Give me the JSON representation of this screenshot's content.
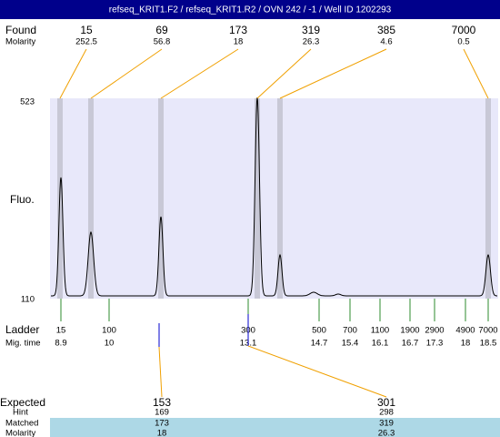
{
  "title": "refseq_KRIT1.F2 / refseq_KRIT1.R2 / OVN 242 / -1 / Well ID 1202293",
  "found": {
    "label": "Found",
    "molarity_label": "Molarity",
    "sizes": [
      15,
      69,
      173,
      319,
      385,
      7000
    ],
    "molarity": [
      252.5,
      56.8,
      18,
      26.3,
      4.6,
      0.5
    ]
  },
  "plot": {
    "y_label": "Fluo.",
    "y_top": 523,
    "y_bottom": 110
  },
  "ladder": {
    "label": "Ladder",
    "mig_label": "Mig. time",
    "sizes": [
      15,
      100,
      300,
      500,
      700,
      1100,
      1900,
      2900,
      4900,
      7000
    ],
    "mig_times": [
      8.9,
      10,
      13.1,
      14.7,
      15.4,
      16.1,
      16.7,
      17.3,
      18,
      18.5
    ]
  },
  "expected": {
    "label": "Expected",
    "hint_label": "Hint",
    "matched_label": "Matched",
    "molarity_label": "Molarity",
    "expected": [
      153,
      301
    ],
    "hint": [
      169,
      298
    ],
    "matched": [
      173,
      319
    ],
    "molarity": [
      18,
      26.3
    ]
  }
}
